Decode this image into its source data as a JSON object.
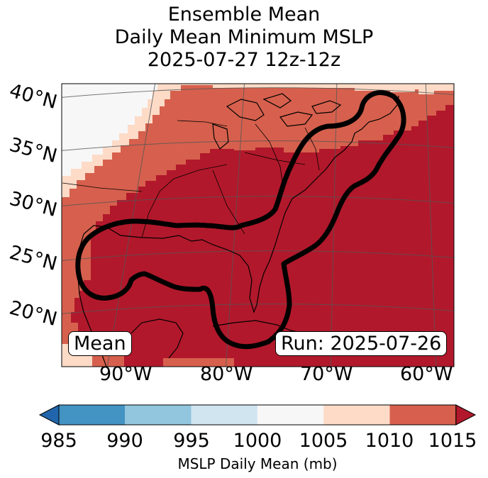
{
  "title": {
    "line1": "Ensemble Mean",
    "line2": "Daily Mean Minimum MSLP",
    "line3": "2025-07-27 12z-12z"
  },
  "map": {
    "latitude_labels": [
      "40°N",
      "35°N",
      "30°N",
      "25°N",
      "20°N"
    ],
    "longitude_labels": [
      "90°W",
      "80°W",
      "70°W",
      "60°W"
    ],
    "mean_badge": "Mean",
    "run_badge": "Run: 2025-07-26",
    "contour_color": "#000000",
    "coastline_color": "#000000"
  },
  "colorbar": {
    "ticks": [
      "985",
      "990",
      "995",
      "1000",
      "1005",
      "1010",
      "1015"
    ],
    "label": "MSLP Daily Mean (mb)",
    "colors": {
      "below": "#2166ac",
      "c985_990": "#4393c3",
      "c990_995": "#92c5de",
      "c995_1000": "#d1e5f0",
      "c1000_1005": "#f7f7f7",
      "c1005_1010": "#fddbc7",
      "c1010_1015": "#d6604d",
      "above": "#b2182b"
    }
  }
}
